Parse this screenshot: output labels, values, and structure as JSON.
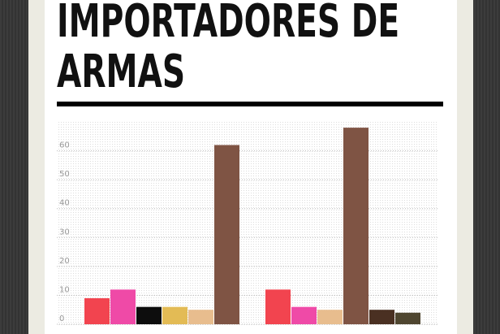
{
  "chart_data": {
    "type": "bar",
    "title": "IMPORTADORES DE ARMAS",
    "groups": [
      {
        "values": [
          9,
          12,
          6,
          6,
          5,
          62
        ],
        "colors": [
          "#f2444f",
          "#ef4aa7",
          "#0d0d0d",
          "#e3bb55",
          "#e8bd8e",
          "#7f5444"
        ]
      },
      {
        "values": [
          12,
          6,
          5,
          68,
          5,
          4
        ],
        "colors": [
          "#f2444f",
          "#ef4aa7",
          "#e8bd8e",
          "#7f5444",
          "#4a3022",
          "#4f4630"
        ]
      }
    ],
    "ylim": [
      0,
      70
    ],
    "yticks": [
      0,
      10,
      20,
      30,
      40,
      50,
      60
    ],
    "grid": true
  }
}
